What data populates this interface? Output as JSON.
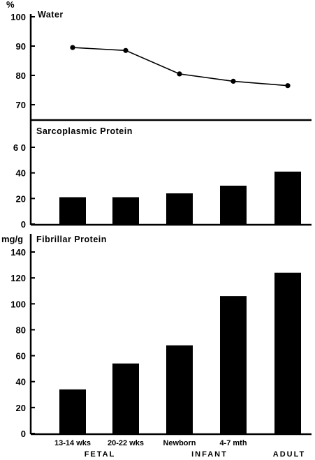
{
  "chart_data": [
    {
      "type": "line",
      "title": "Water",
      "unit": "%",
      "categories": [
        "13-14 wks",
        "20-22 wks",
        "Newborn",
        "4-7 mth",
        "ADULT"
      ],
      "values": [
        89.5,
        88.5,
        80.5,
        78,
        76.5
      ],
      "ylim": [
        65,
        100
      ],
      "yticks": [
        "100",
        "90",
        "80",
        "70"
      ],
      "ytick_values": [
        100,
        90,
        80,
        70
      ]
    },
    {
      "type": "bar",
      "title": "Sarcoplasmic Protein",
      "categories": [
        "13-14 wks",
        "20-22 wks",
        "Newborn",
        "4-7 mth",
        "ADULT"
      ],
      "values": [
        21,
        21,
        24,
        30,
        41
      ],
      "ylim": [
        0,
        60
      ],
      "yticks": [
        "6 0",
        "40",
        "20",
        "0"
      ],
      "ytick_values": [
        60,
        40,
        20,
        0
      ]
    },
    {
      "type": "bar",
      "title": "Fibrillar Protein",
      "unit": "mg/g",
      "categories": [
        "13-14 wks",
        "20-22 wks",
        "Newborn",
        "4-7 mth",
        "ADULT"
      ],
      "values": [
        34,
        54,
        68,
        106,
        124
      ],
      "ylim": [
        0,
        140
      ],
      "yticks": [
        "140",
        "120",
        "100",
        "80",
        "60",
        "40",
        "20",
        "0"
      ],
      "ytick_values": [
        140,
        120,
        100,
        80,
        60,
        40,
        20,
        0
      ]
    }
  ],
  "x_axis": {
    "categories": [
      "13-14 wks",
      "20-22 wks",
      "Newborn",
      "4-7 mth",
      "ADULT"
    ],
    "groups": [
      "FETAL",
      "INFANT"
    ]
  }
}
